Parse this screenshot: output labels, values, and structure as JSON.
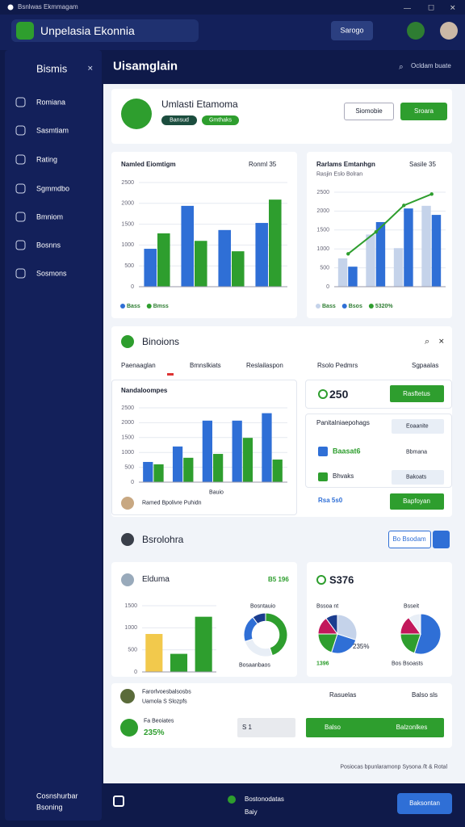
{
  "window": {
    "title": "Bsnlwas Ekmmagam"
  },
  "header": {
    "app_name": "Unpelasia Ekonnia",
    "button": "Sarogo"
  },
  "sidebar": {
    "title": "Bismis",
    "items": [
      "Romiana",
      "Sasmtiam",
      "Rating",
      "Sgmmdbo",
      "Bmniom",
      "Bosnns",
      "Sosmons"
    ],
    "footer": {
      "name": "Cosnshurbar",
      "sub": "Bsoning"
    }
  },
  "main": {
    "title": "Uisamglain",
    "action": "Ocldam buate"
  },
  "profile": {
    "name": "Umlasti Etamoma",
    "tags": [
      "Bansud",
      "Gmthaks"
    ],
    "buttons": [
      "Siomobie",
      "Sroara"
    ]
  },
  "overview_charts": [
    {
      "type": "bar",
      "title": "Namled Eiomtigm",
      "control": "Ronml 35",
      "categories": [
        null,
        null,
        null,
        null
      ],
      "ylim": [
        0,
        2500
      ],
      "yticks": [
        0,
        500,
        1000,
        1500,
        2000,
        2500
      ],
      "grid": true,
      "series": [
        {
          "name": "Bass",
          "color": "#2f6fd6",
          "values": [
            910,
            1940,
            1360,
            1530
          ]
        },
        {
          "name": "Bmss",
          "color": "#2e9e2e",
          "values": [
            1280,
            1100,
            850,
            2090
          ]
        }
      ]
    },
    {
      "type": "bar",
      "title": "Rarlams Emtanhgn",
      "subtitle": "Rasjin Eslo Bolran",
      "control": "Sasile 35",
      "categories": [
        null,
        null,
        null,
        null
      ],
      "ylim": [
        0,
        2500
      ],
      "yticks": [
        0,
        500,
        1000,
        1500,
        2000,
        2500
      ],
      "grid": true,
      "series": [
        {
          "name": "Bass",
          "color": "#c5d3ea",
          "values": [
            750,
            1380,
            1020,
            2140
          ]
        },
        {
          "name": "Bsos",
          "color": "#2f6fd6",
          "values": [
            530,
            1710,
            2070,
            1900
          ]
        },
        {
          "name": "5320%",
          "color": "#2e9e2e",
          "type": "line",
          "values": [
            870,
            1450,
            2150,
            2450
          ]
        }
      ]
    }
  ],
  "insights": {
    "title": "Binoions",
    "tabs": [
      "Paenaaglan",
      "Bmnslkiats",
      "Reslailaspon",
      "Rsolo Pedmrs",
      "Sgpaalas"
    ],
    "chart": {
      "type": "bar",
      "title": "Nandaloompes",
      "xlabel": "Bauio",
      "footer": "Ramed Bpolivre Puhidn",
      "categories": [
        null,
        null,
        null,
        null,
        null
      ],
      "ylim": [
        0,
        2500
      ],
      "yticks": [
        0,
        500,
        1000,
        1500,
        2000,
        2500
      ],
      "grid": true,
      "series": [
        {
          "color": "#2f6fd6",
          "values": [
            680,
            1200,
            2070,
            2070,
            2320
          ]
        },
        {
          "color": "#2e9e2e",
          "values": [
            600,
            820,
            950,
            1490,
            760
          ]
        }
      ]
    },
    "metric": {
      "value": "250",
      "button": "Rasftetus"
    },
    "panel": {
      "title": "Panitalniaepohags",
      "left": [
        "Baasat6",
        "Bhvaks"
      ],
      "right": [
        "Eoaanite",
        "Bbmana",
        "Bakoats"
      ],
      "footer": "Rsa 5s0",
      "button": "Bapfoyan"
    }
  },
  "breakdown": {
    "title": "Bsrolohra",
    "button": "Bo Bsodam",
    "left": {
      "title": "Elduma",
      "badge": "B5 196",
      "chart": {
        "type": "bar",
        "categories": [
          null,
          null,
          null
        ],
        "ylim": [
          0,
          1500
        ],
        "yticks": [
          0,
          500,
          1000,
          1500
        ],
        "grid": true,
        "series": [
          {
            "colors": [
              "#f2c94c",
              "#2e9e2e",
              "#2e9e2e"
            ],
            "values": [
              860,
              410,
              1250
            ]
          }
        ]
      },
      "donut": {
        "type": "donut",
        "values": [
          45,
          25,
          20,
          10
        ],
        "colors": [
          "#2e9e2e",
          "#e8eef6",
          "#2f6fd6",
          "#1b3d8f"
        ]
      },
      "donut_labels": [
        "Bosntauio",
        "Bosaanbaos"
      ]
    },
    "right": {
      "title": "S376",
      "pie": {
        "type": "pie",
        "values": [
          30,
          25,
          20,
          15,
          10
        ],
        "colors": [
          "#c5d3ea",
          "#2f6fd6",
          "#2e9e2e",
          "#c2185b",
          "#1b3d8f"
        ]
      },
      "donut": {
        "type": "pie",
        "values": [
          55,
          20,
          15,
          10
        ],
        "colors": [
          "#2f6fd6",
          "#2e9e2e",
          "#c2185b",
          "#e8eef6"
        ]
      },
      "labels": [
        "Bssoa nt",
        "235%",
        "1396",
        "Bsseit",
        "Bos Bsoasts"
      ]
    }
  },
  "activity": {
    "rows": [
      {
        "title": "Farorlvoesbalsosbs",
        "sub": "Uamola S Slozpfs",
        "status": "Rasuelas",
        "amount": "Balso sls"
      },
      {
        "title": "Fa Beoiates",
        "value": "235%",
        "input": "S 1",
        "buttons": [
          "Balso",
          "Balzonlkes"
        ]
      }
    ]
  },
  "footer": {
    "note": "Posiocas bpunlaramonp Sysona /lt & Rotal"
  },
  "bottom_bar": {
    "title": "Bostonodatas",
    "sub": "Baiy",
    "button": "Baksontan"
  }
}
